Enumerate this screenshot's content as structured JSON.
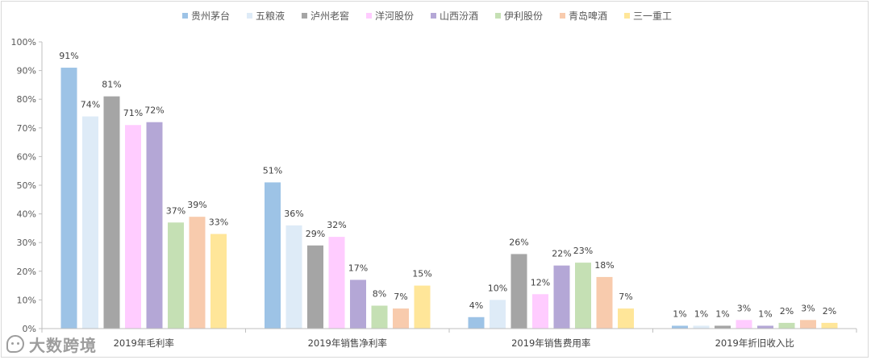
{
  "chart_data": {
    "type": "bar",
    "title": "",
    "xlabel": "",
    "ylabel": "",
    "ylim": [
      0,
      100
    ],
    "y_ticks": [
      "0%",
      "10%",
      "20%",
      "30%",
      "40%",
      "50%",
      "60%",
      "70%",
      "80%",
      "90%",
      "100%"
    ],
    "legend_position": "top",
    "grid": false,
    "categories": [
      "2019年毛利率",
      "2019年销售净利率",
      "2019年销售费用率",
      "2019年折旧收入比"
    ],
    "series": [
      {
        "name": "贵州茅台",
        "color": "#9dc3e6",
        "values": [
          91,
          51,
          4,
          1
        ],
        "labels": [
          "91%",
          "51%",
          "4%",
          "1%"
        ]
      },
      {
        "name": "五粮液",
        "color": "#deebf7",
        "values": [
          74,
          36,
          10,
          1
        ],
        "labels": [
          "74%",
          "36%",
          "10%",
          "1%"
        ]
      },
      {
        "name": "泸州老窖",
        "color": "#a5a5a5",
        "values": [
          81,
          29,
          26,
          1
        ],
        "labels": [
          "81%",
          "29%",
          "26%",
          "1%"
        ]
      },
      {
        "name": "洋河股份",
        "color": "#ffccff",
        "values": [
          71,
          32,
          12,
          3
        ],
        "labels": [
          "71%",
          "32%",
          "12%",
          "3%"
        ]
      },
      {
        "name": "山西汾酒",
        "color": "#b4a7d6",
        "values": [
          72,
          17,
          22,
          1
        ],
        "labels": [
          "72%",
          "17%",
          "22%",
          "1%"
        ]
      },
      {
        "name": "伊利股份",
        "color": "#c5e0b4",
        "values": [
          37,
          8,
          23,
          2
        ],
        "labels": [
          "37%",
          "8%",
          "23%",
          "2%"
        ]
      },
      {
        "name": "青岛啤酒",
        "color": "#f8cbad",
        "values": [
          39,
          7,
          18,
          3
        ],
        "labels": [
          "39%",
          "7%",
          "18%",
          "3%"
        ]
      },
      {
        "name": "三一重工",
        "color": "#ffe699",
        "values": [
          33,
          15,
          7,
          2
        ],
        "labels": [
          "33%",
          "15%",
          "7%",
          "2%"
        ]
      }
    ]
  },
  "watermark": {
    "text": "大数跨境",
    "icon": "chat-bubble-icon"
  }
}
